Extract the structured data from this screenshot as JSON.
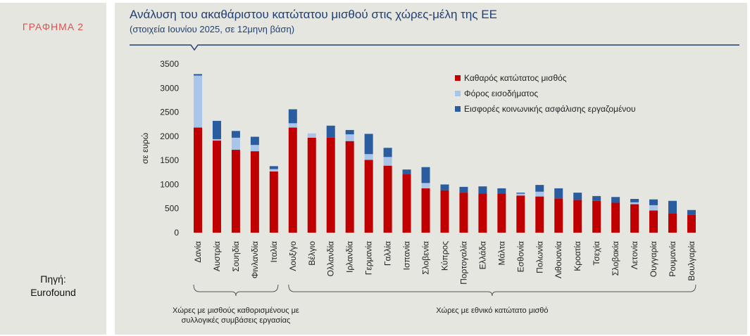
{
  "panel": {
    "label": "ΓΡΑΦΗΜΑ 2",
    "source_line1": "Πηγή:",
    "source_line2": "Eurofound"
  },
  "chart_data": {
    "type": "bar",
    "stacked": true,
    "title": "Ανάλυση του ακαθάριστου κατώτατου μισθού στις χώρες-μέλη της ΕΕ",
    "subtitle": "(στοιχεία Ιουνίου 2025, σε 12μηνη βάση)",
    "ylabel": "σε ευρώ",
    "ylim": [
      0,
      3500
    ],
    "yticks": [
      0,
      500,
      1000,
      1500,
      2000,
      2500,
      3000,
      3500
    ],
    "legend_position": "top-right",
    "grid": false,
    "categories": [
      "Δανία",
      "Αυστρία",
      "Σουηδία",
      "Φινλανδία",
      "Ιταλία",
      "Λουξ/γο",
      "Βέλγιο",
      "Ολλανδία",
      "Ιρλανδία",
      "Γερμανία",
      "Γαλλία",
      "Ισπανία",
      "Σλοβενία",
      "Κύπρος",
      "Πορτογαλία",
      "Ελλάδα",
      "Μάλτα",
      "Εσθονία",
      "Πολωνία",
      "Λιθουανία",
      "Κροατία",
      "Τσεχία",
      "Σλοβακία",
      "Λετονία",
      "Ουγγαρία",
      "Ρουμανία",
      "Βουλγαρία"
    ],
    "series": [
      {
        "name": "Καθαρός κατώτατος μισθός",
        "color": "#c00000",
        "values": [
          2180,
          1910,
          1720,
          1690,
          1270,
          2180,
          1970,
          1970,
          1900,
          1510,
          1390,
          1210,
          920,
          880,
          830,
          810,
          810,
          770,
          750,
          710,
          680,
          660,
          620,
          590,
          460,
          400,
          370
        ]
      },
      {
        "name": "Φόρος εισοδήματος",
        "color": "#a9c6ea",
        "values": [
          1080,
          30,
          250,
          130,
          50,
          90,
          90,
          0,
          140,
          120,
          180,
          0,
          110,
          0,
          0,
          0,
          0,
          40,
          100,
          0,
          0,
          0,
          0,
          40,
          110,
          0,
          0
        ]
      },
      {
        "name": "Εισφορές κοινωνικής ασφάλισης εργαζομένου",
        "color": "#2a5d9f",
        "values": [
          30,
          380,
          140,
          170,
          60,
          290,
          0,
          250,
          90,
          420,
          190,
          100,
          330,
          120,
          120,
          150,
          110,
          20,
          140,
          210,
          150,
          100,
          120,
          70,
          120,
          260,
          100
        ]
      }
    ],
    "groups": [
      {
        "label_line1": "Χώρες με μισθούς καθορισμένους με",
        "label_line2": "συλλογικές συμβάσεις εργασίας",
        "from": 0,
        "to": 4
      },
      {
        "label_line1": "Χώρες με εθνικό κατώτατο μισθό",
        "label_line2": "",
        "from": 5,
        "to": 26
      }
    ]
  }
}
